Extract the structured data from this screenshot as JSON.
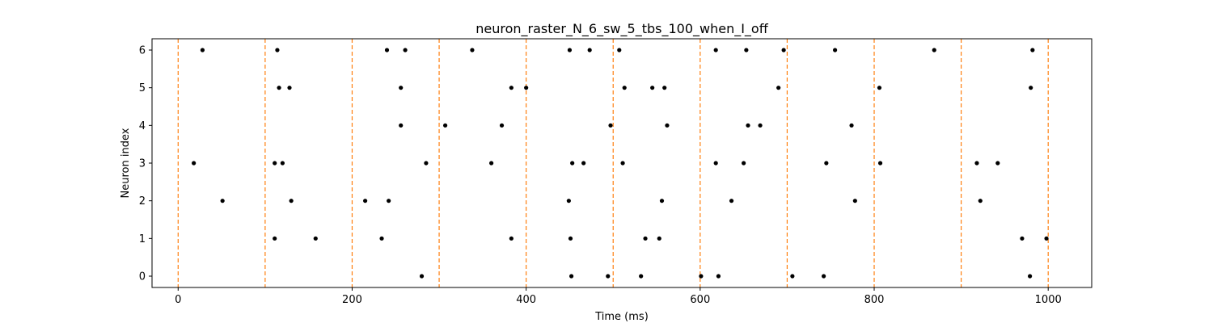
{
  "chart_data": {
    "type": "scatter",
    "title": "neuron_raster_N_6_sw_5_tbs_100_when_I_off",
    "xlabel": "Time (ms)",
    "ylabel": "Neuron index",
    "xlim": [
      -30,
      1050
    ],
    "ylim": [
      -0.3,
      6.3
    ],
    "xticks": [
      0,
      200,
      400,
      600,
      800,
      1000
    ],
    "yticks": [
      0,
      1,
      2,
      3,
      4,
      5,
      6
    ],
    "grid": false,
    "marker_color": "#000000",
    "vline_color": "#ff7f0e",
    "vlines": [
      0,
      100,
      200,
      300,
      400,
      500,
      600,
      700,
      800,
      900,
      1000
    ],
    "series": [
      {
        "values": [
          [
            28,
            6
          ],
          [
            114,
            6
          ],
          [
            240,
            6
          ],
          [
            261,
            6
          ],
          [
            338,
            6
          ],
          [
            450,
            6
          ],
          [
            473,
            6
          ],
          [
            507,
            6
          ],
          [
            618,
            6
          ],
          [
            653,
            6
          ],
          [
            696,
            6
          ],
          [
            755,
            6
          ],
          [
            869,
            6
          ],
          [
            982,
            6
          ],
          [
            116,
            5
          ],
          [
            128,
            5
          ],
          [
            256,
            5
          ],
          [
            383,
            5
          ],
          [
            400,
            5
          ],
          [
            513,
            5
          ],
          [
            545,
            5
          ],
          [
            559,
            5
          ],
          [
            690,
            5
          ],
          [
            806,
            5
          ],
          [
            980,
            5
          ],
          [
            256,
            4
          ],
          [
            307,
            4
          ],
          [
            372,
            4
          ],
          [
            497,
            4
          ],
          [
            562,
            4
          ],
          [
            655,
            4
          ],
          [
            669,
            4
          ],
          [
            774,
            4
          ],
          [
            18,
            3
          ],
          [
            111,
            3
          ],
          [
            120,
            3
          ],
          [
            285,
            3
          ],
          [
            360,
            3
          ],
          [
            453,
            3
          ],
          [
            466,
            3
          ],
          [
            511,
            3
          ],
          [
            618,
            3
          ],
          [
            650,
            3
          ],
          [
            745,
            3
          ],
          [
            807,
            3
          ],
          [
            918,
            3
          ],
          [
            942,
            3
          ],
          [
            51,
            2
          ],
          [
            130,
            2
          ],
          [
            215,
            2
          ],
          [
            242,
            2
          ],
          [
            449,
            2
          ],
          [
            556,
            2
          ],
          [
            636,
            2
          ],
          [
            778,
            2
          ],
          [
            922,
            2
          ],
          [
            111,
            1
          ],
          [
            158,
            1
          ],
          [
            234,
            1
          ],
          [
            383,
            1
          ],
          [
            451,
            1
          ],
          [
            537,
            1
          ],
          [
            553,
            1
          ],
          [
            970,
            1
          ],
          [
            998,
            1
          ],
          [
            280,
            0
          ],
          [
            452,
            0
          ],
          [
            494,
            0
          ],
          [
            532,
            0
          ],
          [
            601,
            0
          ],
          [
            621,
            0
          ],
          [
            706,
            0
          ],
          [
            742,
            0
          ],
          [
            979,
            0
          ]
        ]
      }
    ]
  }
}
